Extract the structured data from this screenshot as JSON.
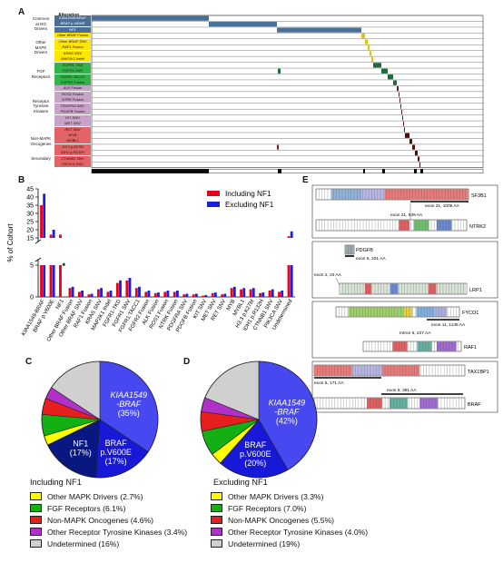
{
  "panel_letters": {
    "a": "A",
    "b": "B",
    "c": "C",
    "d": "D",
    "e": "E"
  },
  "panel_a": {
    "header": "Alteration",
    "groups": [
      {
        "label": "Common\nat DG\nDrivers",
        "rows": [
          0,
          2
        ]
      },
      {
        "label": "Other\nMAPK\nDrivers",
        "rows": [
          3,
          7
        ]
      },
      {
        "label": "FGF\nReceptors",
        "rows": [
          8,
          11
        ]
      },
      {
        "label": "Receptor\nTyrosine\nKinases",
        "rows": [
          12,
          18
        ]
      },
      {
        "label": "Non-MAPK\nOncogenes",
        "rows": [
          19,
          23
        ]
      },
      {
        "label": "Secondary",
        "rows": [
          24,
          24
        ]
      }
    ],
    "rows": [
      {
        "label": "KIAA1549:BRAF",
        "color": "#4a6e97"
      },
      {
        "label": "BRAF p.V600E",
        "color": "#4a6e97"
      },
      {
        "label": "NF1",
        "color": "#4a6e97"
      },
      {
        "label": "Other BRAF Fusion",
        "color": "#ffe600"
      },
      {
        "label": "Other BRAF SNV",
        "color": "#ffe600"
      },
      {
        "label": "RAF1 Fusion",
        "color": "#ffe600"
      },
      {
        "label": "KRAS SNV",
        "color": "#ffe600"
      },
      {
        "label": "MAP2K1 Indel",
        "color": "#ffe600"
      },
      {
        "label": "FGFR1-TKD",
        "color": "#34b34a"
      },
      {
        "label": "FGFR1 SNV",
        "color": "#34b34a"
      },
      {
        "label": "FGFR1:TACC1",
        "color": "#34b34a"
      },
      {
        "label": "FGFR2 Fusion",
        "color": "#34b34a"
      },
      {
        "label": "ALK Fusion",
        "color": "#c8a2c8"
      },
      {
        "label": "ROS1 Fusion",
        "color": "#c8a2c8"
      },
      {
        "label": "NTRK Fusion",
        "color": "#c8a2c8"
      },
      {
        "label": "PDGFRA SNV",
        "color": "#c8a2c8"
      },
      {
        "label": "PDGFB Fusion",
        "color": "#c8a2c8"
      },
      {
        "label": "KIT SNV",
        "color": "#c8a2c8"
      },
      {
        "label": "MET SNV",
        "color": "#c8a2c8"
      },
      {
        "label": "RET SNV",
        "color": "#e36464"
      },
      {
        "label": "MYB",
        "color": "#e36464"
      },
      {
        "label": "MYBL1",
        "color": "#e36464"
      },
      {
        "label": "H3.3 p.K27M",
        "color": "#e36464"
      },
      {
        "label": "IDH1 p.R132H",
        "color": "#e36464"
      },
      {
        "label": "CTNNB1 SNV",
        "color": "#e36464"
      },
      {
        "label": "PIK3CA SNV",
        "color": "#e36464"
      }
    ]
  },
  "chart_data": [
    {
      "type": "bar",
      "panel": "B",
      "ylabel": "% of Cohort",
      "yticks": [
        0,
        5,
        15,
        20,
        25,
        30,
        35,
        40,
        45
      ],
      "legend_position": "top-right",
      "categories": [
        "KIAA1549-BRAF",
        "BRAF p.V600E",
        "NF1",
        "Other BRAF Fusion",
        "Other BRAF SNV",
        "RAF1 Fusion",
        "KRAS SNV",
        "MAP2K1 Indel",
        "FGFR1-TKD",
        "FGFR1 SNV",
        "FGFR1:TACC1",
        "FGFR2 Fusion",
        "ALK Fusion",
        "ROS1 Fusion",
        "NTRK Fusion",
        "PDGFRA SNV",
        "PDGFB Fusion",
        "KIT SNV",
        "MET SNV",
        "RET SNV",
        "MYB",
        "MYBL1",
        "H3.3 p.K27M",
        "IDH1 p.R132H",
        "CTNNB1 SNV",
        "PIK3CA SNV",
        "Undetermined"
      ],
      "series": [
        {
          "name": "Including NF1",
          "color": "#e8001c",
          "values": [
            35,
            17,
            17,
            1.4,
            0.8,
            0.4,
            1.2,
            0.8,
            2.2,
            2.6,
            1.4,
            0.8,
            0.6,
            0.8,
            0.8,
            0.4,
            0.4,
            0.2,
            0.6,
            0.4,
            1.4,
            1.2,
            1.2,
            0.6,
            1.0,
            0.8,
            16
          ]
        },
        {
          "name": "Excluding NF1",
          "color": "#1a20d8",
          "values": [
            42,
            20,
            0,
            1.6,
            1.0,
            0.5,
            1.4,
            1.0,
            2.6,
            3.0,
            1.6,
            1.0,
            0.7,
            1.0,
            1.0,
            0.5,
            0.5,
            0.3,
            0.7,
            0.5,
            1.6,
            1.4,
            1.4,
            0.7,
            1.2,
            1.0,
            19
          ]
        }
      ]
    },
    {
      "type": "pie",
      "panel": "C",
      "title": "Including NF1",
      "slices": [
        {
          "name": "KIAA1549-BRAF",
          "value": 35,
          "color": "#4848f0"
        },
        {
          "name": "BRAF p.V600E",
          "value": 17,
          "color": "#1818d8"
        },
        {
          "name": "NF1",
          "value": 17,
          "color": "#081880"
        },
        {
          "name": "Other MAPK Drivers",
          "value": 2.7,
          "color": "#ffff00"
        },
        {
          "name": "FGF Receptors",
          "value": 6.1,
          "color": "#12b012"
        },
        {
          "name": "Non-MAPK Oncogenes",
          "value": 4.6,
          "color": "#e61e1e"
        },
        {
          "name": "Other Receptor Tyrosine Kinases",
          "value": 3.4,
          "color": "#b030c8"
        },
        {
          "name": "Undetermined",
          "value": 16,
          "color": "#d0d0d0"
        }
      ]
    },
    {
      "type": "pie",
      "panel": "D",
      "title": "Excluding NF1",
      "slices": [
        {
          "name": "KIAA1549-BRAF",
          "value": 42,
          "color": "#4848f0"
        },
        {
          "name": "BRAF p.V600E",
          "value": 20,
          "color": "#1818d8"
        },
        {
          "name": "Other MAPK Drivers",
          "value": 3.3,
          "color": "#ffff00"
        },
        {
          "name": "FGF Receptors",
          "value": 7.0,
          "color": "#12b012"
        },
        {
          "name": "Non-MAPK Oncogenes",
          "value": 5.5,
          "color": "#e61e1e"
        },
        {
          "name": "Other Receptor Tyrosine Kinases",
          "value": 4.0,
          "color": "#b030c8"
        },
        {
          "name": "Undetermined",
          "value": 19,
          "color": "#d0d0d0"
        }
      ]
    }
  ],
  "pie_labels": {
    "c": {
      "kiaa": "KIAA1549",
      "kiaa2": "-BRAF",
      "kiaa_pct": "(35%)",
      "braf": "BRAF",
      "braf2": "p.V600E",
      "braf_pct": "(17%)",
      "nf1": "NF1",
      "nf1_pct": "(17%)"
    },
    "d": {
      "kiaa": "KIAA1549",
      "kiaa2": "-BRAF",
      "kiaa_pct": "(42%)",
      "braf": "BRAF",
      "braf2": "p.V600E",
      "braf_pct": "(20%)"
    }
  },
  "legend_c": {
    "title": "Including NF1",
    "items": [
      {
        "label": "Other MAPK Drivers (2.7%)",
        "color": "#ffff00"
      },
      {
        "label": "FGF Receptors (6.1%)",
        "color": "#12b012"
      },
      {
        "label": "Non-MAPK Oncogenes (4.6%)",
        "color": "#e61e1e"
      },
      {
        "label": "Other Receptor Tyrosine Kinases (3.4%)",
        "color": "#b030c8"
      },
      {
        "label": "Undetermined (16%)",
        "color": "#d0d0d0"
      }
    ]
  },
  "legend_d": {
    "title": "Excluding NF1",
    "items": [
      {
        "label": "Other MAPK Drivers (3.3%)",
        "color": "#ffff00"
      },
      {
        "label": "FGF Receptors (7.0%)",
        "color": "#12b012"
      },
      {
        "label": "Non-MAPK Oncogenes (5.5%)",
        "color": "#e61e1e"
      },
      {
        "label": "Other Receptor Tyrosine Kinases (4.0%)",
        "color": "#b030c8"
      },
      {
        "label": "Undetermined (19%)",
        "color": "#d0d0d0"
      }
    ]
  },
  "panel_e": {
    "fusions": [
      {
        "gene_a": "SF3B1",
        "gene_b": "NTRK2",
        "exon_a": "exon 21, 1005 AA",
        "exon_b": "exon 21, 839 AA"
      },
      {
        "gene_a": "PDGFB",
        "gene_b": "LRP1",
        "exon_a": "exon 5, 201 AA",
        "exon_b": "exon 2, 23 AA"
      },
      {
        "gene_a": "FYCO1",
        "gene_b": "RAF1",
        "exon_a": "exon 11, 1146 AA",
        "exon_b": "Intron 6, 227 AA"
      },
      {
        "gene_a": "TAX1BP1",
        "gene_b": "BRAF",
        "exon_a": "exon 5, 171 AA",
        "exon_b": "exon 9, 381 AA"
      }
    ]
  }
}
